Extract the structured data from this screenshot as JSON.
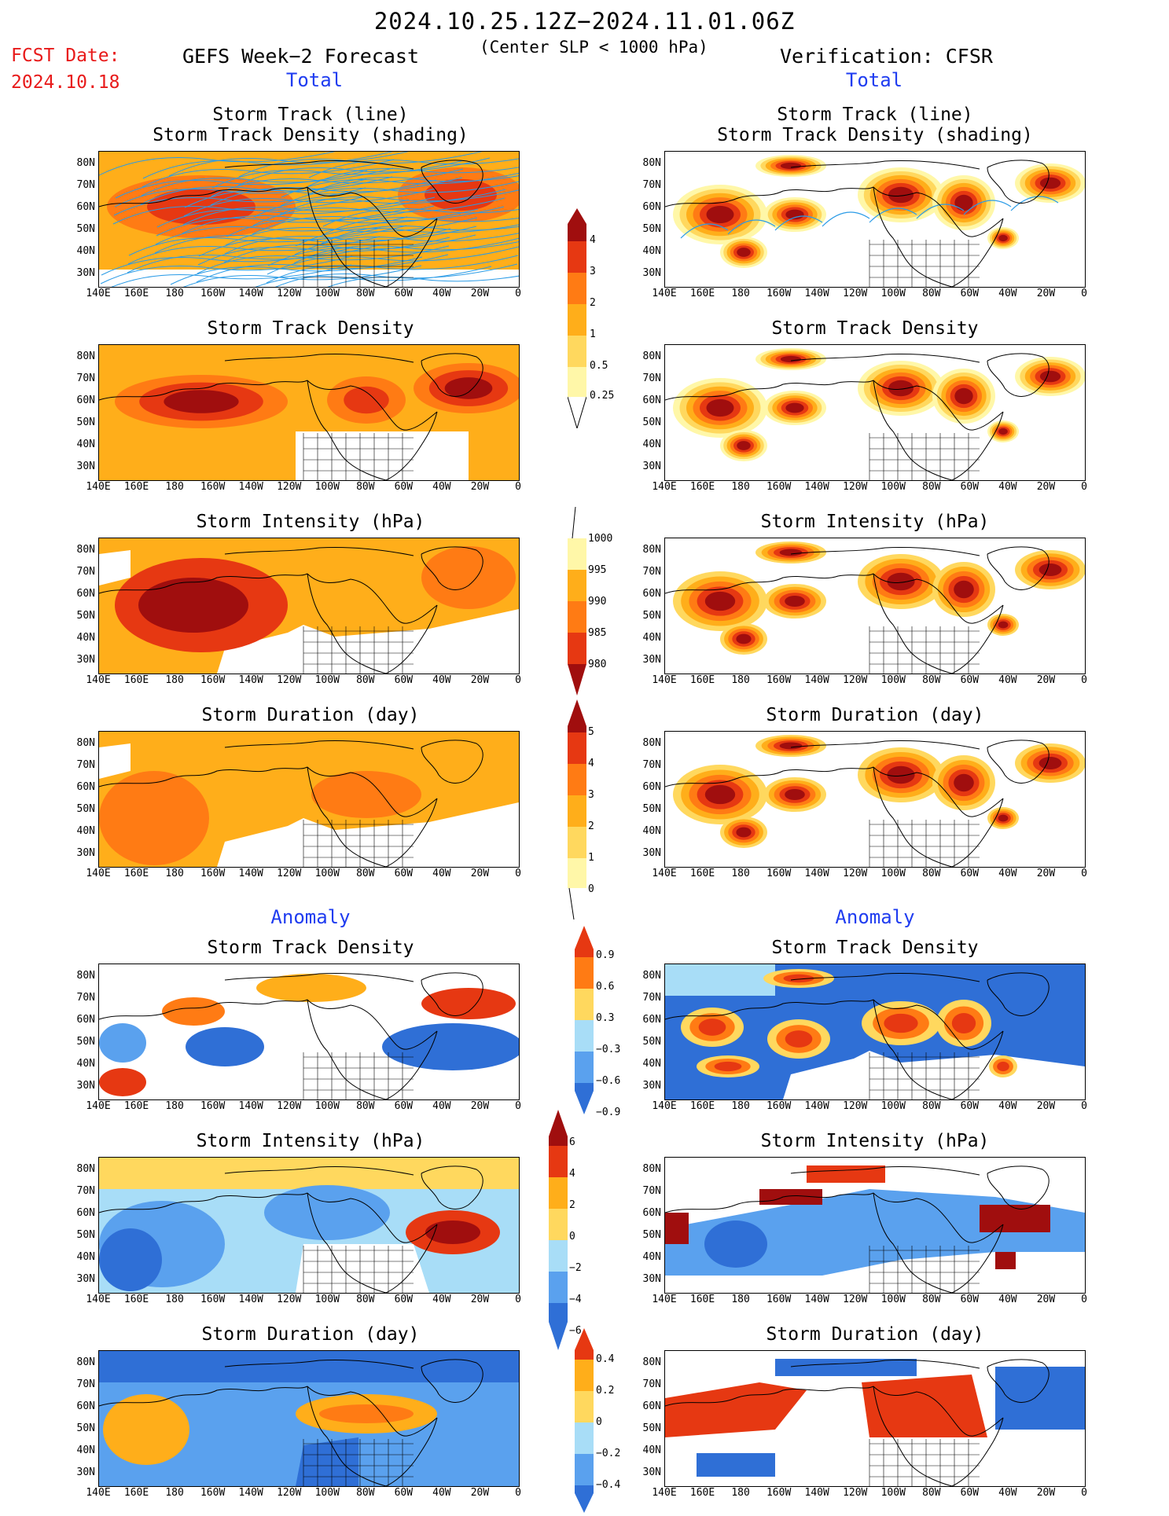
{
  "header": {
    "time_range": "2024.10.25.12Z−2024.11.01.06Z",
    "center_slp": "(Center SLP < 1000 hPa)",
    "fcst_date_label": "FCST Date:",
    "fcst_date_value": "2024.10.18",
    "left_title": "GEFS Week−2 Forecast",
    "right_title": "Verification: CFSR",
    "left_total": "Total",
    "right_total": "Total"
  },
  "sections": {
    "anomaly_left": "Anomaly",
    "anomaly_right": "Anomaly"
  },
  "panel_titles": {
    "track_line": "Storm Track (line)",
    "track_density_shading": "Storm Track Density (shading)",
    "track_density": "Storm Track Density",
    "intensity": "Storm Intensity (hPa)",
    "duration": "Storm Duration (day)"
  },
  "axes": {
    "lat_labels": [
      "80N",
      "70N",
      "60N",
      "50N",
      "40N",
      "30N"
    ],
    "lon_labels": [
      "140E",
      "160E",
      "180",
      "160W",
      "140W",
      "120W",
      "100W",
      "80W",
      "60W",
      "40W",
      "20W",
      "0"
    ]
  },
  "colorbars": {
    "density_total": [
      "4",
      "3",
      "2",
      "1",
      "0.5",
      "0.25"
    ],
    "intensity_total": [
      "1000",
      "995",
      "990",
      "985",
      "980"
    ],
    "duration_total": [
      "5",
      "4",
      "3",
      "2",
      "1",
      "0"
    ],
    "density_anom": [
      "0.9",
      "0.6",
      "0.3",
      "−0.3",
      "−0.6",
      "−0.9"
    ],
    "intensity_anom": [
      "6",
      "4",
      "2",
      "0",
      "−2",
      "−4",
      "−6"
    ],
    "duration_anom": [
      "0.4",
      "0.2",
      "0",
      "−0.2",
      "−0.4"
    ]
  },
  "colors": {
    "c1": "#fff7a8",
    "c2": "#ffd85e",
    "c3": "#ffae1a",
    "c4": "#ff7b14",
    "c5": "#e63812",
    "c6": "#a00e0e",
    "a1": "#2f6fd6",
    "a2": "#5aa1ee",
    "a3": "#a8ddf7",
    "track_line": "#2a9be6"
  }
}
